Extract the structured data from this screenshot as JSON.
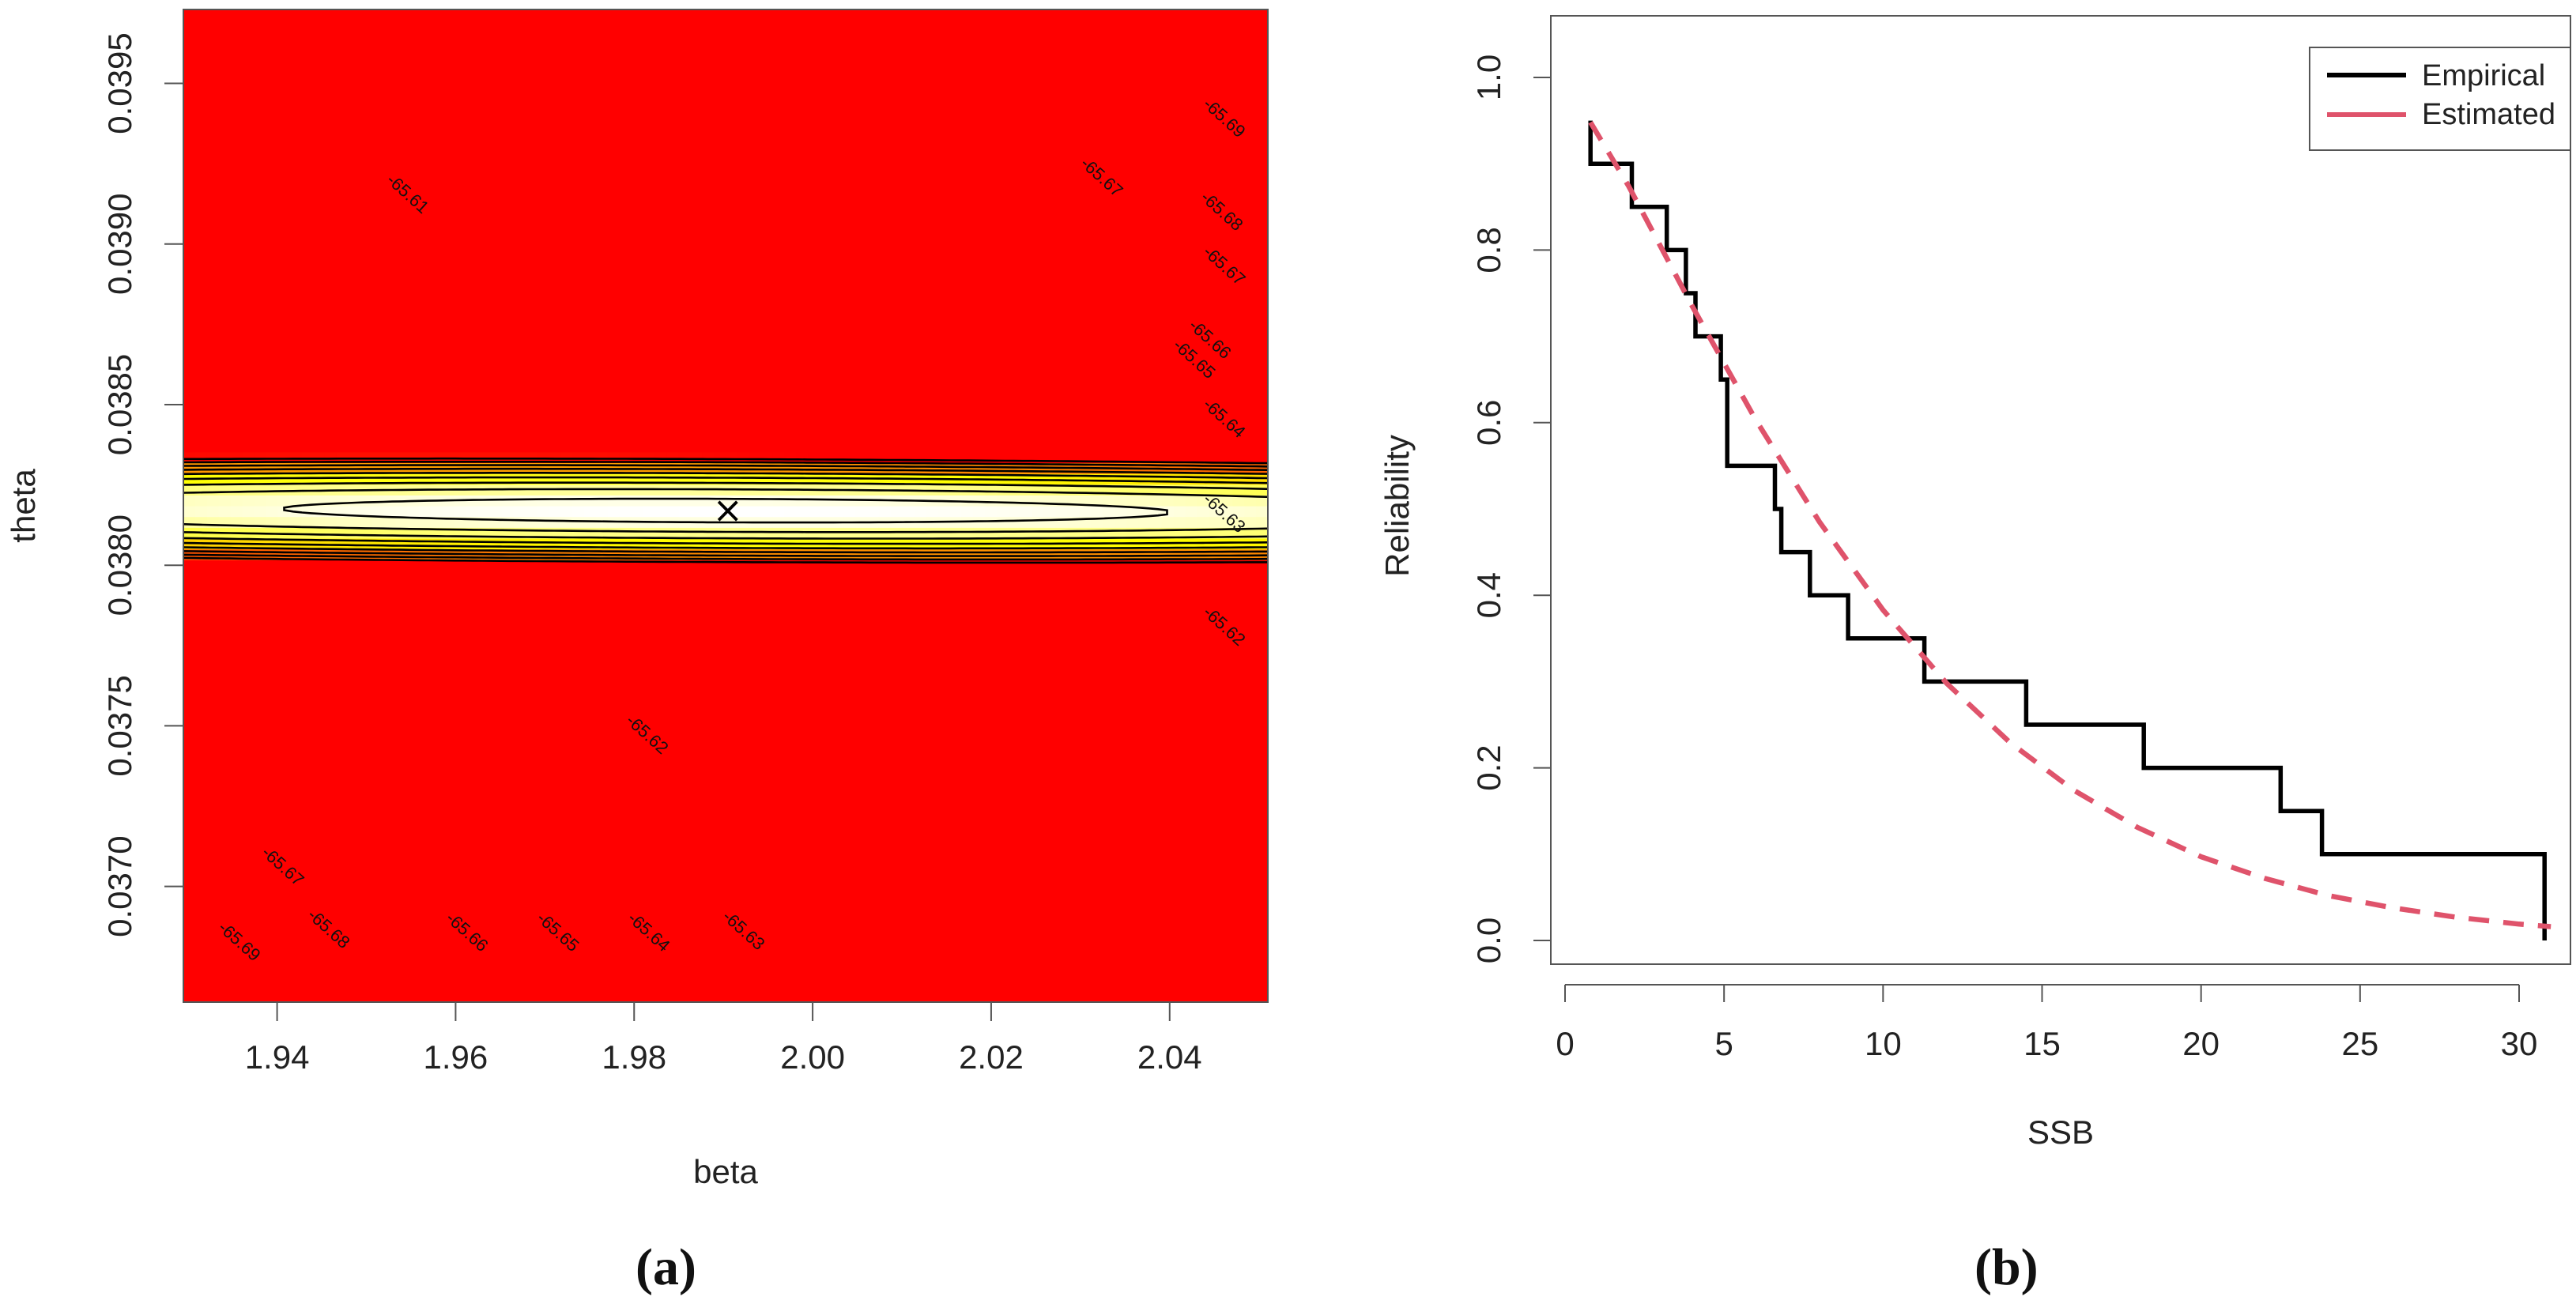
{
  "colors": {
    "hot": "#ff0000",
    "mid": "#ffff00",
    "cool": "#ffffff",
    "empirical": "#000000",
    "estimated": "#df536b"
  },
  "chart_data": [
    {
      "panel": "(a)",
      "type": "heatmap",
      "subtype": "contour",
      "title": "",
      "xlabel": "beta",
      "ylabel": "theta",
      "xlim": [
        1.9295,
        2.051
      ],
      "ylim": [
        0.03664,
        0.03973
      ],
      "xticks": [
        "1.94",
        "1.96",
        "1.98",
        "2.00",
        "2.02",
        "2.04"
      ],
      "xtick_values": [
        1.94,
        1.96,
        1.98,
        2.0,
        2.02,
        2.04
      ],
      "yticks": [
        "0.0370",
        "0.0375",
        "0.0380",
        "0.0385",
        "0.0390",
        "0.0395"
      ],
      "ytick_values": [
        0.037,
        0.0375,
        0.038,
        0.0385,
        0.039,
        0.0395
      ],
      "maximum": {
        "beta": 1.9905,
        "theta": 0.03817,
        "marker": "×"
      },
      "contours": [
        {
          "level": -65.61,
          "label": "-65.61"
        },
        {
          "level": -65.62,
          "label": "-65.62"
        },
        {
          "level": -65.63,
          "label": "-65.63"
        },
        {
          "level": -65.64,
          "label": "-65.64"
        },
        {
          "level": -65.65,
          "label": "-65.65"
        },
        {
          "level": -65.66,
          "label": "-65.66"
        },
        {
          "level": -65.67,
          "label": "-65.67"
        },
        {
          "level": -65.68,
          "label": "-65.68"
        },
        {
          "level": -65.69,
          "label": "-65.69"
        }
      ]
    },
    {
      "panel": "(b)",
      "type": "line",
      "title": "",
      "xlabel": "SSB",
      "ylabel": "Reliability",
      "xlim": [
        0,
        31
      ],
      "ylim": [
        0,
        1
      ],
      "xticks": [
        "0",
        "5",
        "10",
        "15",
        "20",
        "25",
        "30"
      ],
      "xtick_values": [
        0,
        5,
        10,
        15,
        20,
        25,
        30
      ],
      "yticks": [
        "0.0",
        "0.2",
        "0.4",
        "0.6",
        "0.8",
        "1.0"
      ],
      "ytick_values": [
        0,
        0.2,
        0.4,
        0.6,
        0.8,
        1.0
      ],
      "legend": {
        "position": "top-right",
        "entries": [
          "Empirical",
          "Estimated"
        ]
      },
      "series": [
        {
          "name": "Empirical",
          "style": "step",
          "x": [
            0.8,
            2.1,
            3.2,
            3.8,
            4.1,
            4.9,
            5.1,
            6.6,
            6.8,
            7.7,
            8.9,
            11.3,
            14.5,
            18.2,
            22.5,
            23.8,
            30.8
          ],
          "y": [
            0.95,
            0.9,
            0.85,
            0.8,
            0.75,
            0.7,
            0.6,
            0.55,
            0.5,
            0.45,
            0.4,
            0.35,
            0.3,
            0.25,
            0.2,
            0.15,
            0.1
          ]
        },
        {
          "name": "Estimated",
          "style": "dashed",
          "x": [
            0.8,
            2,
            4,
            6,
            8,
            10,
            12,
            14,
            16,
            18,
            20,
            22,
            24,
            26,
            28,
            30,
            31
          ],
          "y": [
            0.948,
            0.874,
            0.735,
            0.603,
            0.485,
            0.383,
            0.298,
            0.229,
            0.174,
            0.131,
            0.097,
            0.072,
            0.052,
            0.038,
            0.027,
            0.019,
            0.016
          ]
        }
      ]
    }
  ]
}
